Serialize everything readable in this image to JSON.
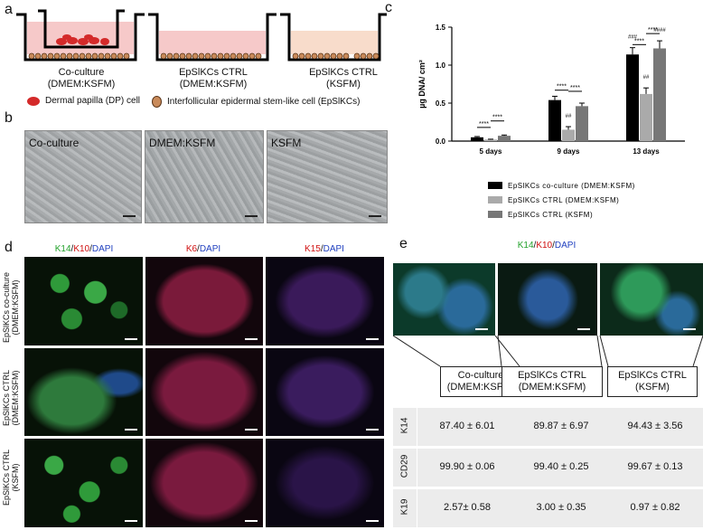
{
  "panels": {
    "a": "a",
    "b": "b",
    "c": "c",
    "d": "d",
    "e": "e"
  },
  "panel_a": {
    "wells": [
      {
        "caption_line1": "Co-culture",
        "caption_line2": "(DMEM:KSFM)"
      },
      {
        "caption_line1": "EpSlKCs CTRL",
        "caption_line2": "(DMEM:KSFM)"
      },
      {
        "caption_line1": "EpSlKCs CTRL",
        "caption_line2": "(KSFM)"
      }
    ],
    "legend_dp": "Dermal papilla (DP) cell",
    "legend_ep": "Interfollicular epidermal stem-like cell (EpSlKCs)",
    "colors": {
      "medium_dmem": "#f6c9c9",
      "medium_ksfm": "#f8dccb",
      "dp_cell": "#d42a2a",
      "ep_cell": "#7a4a2a"
    }
  },
  "panel_b": {
    "images": [
      "Co-culture",
      "DMEM:KSFM",
      "KSFM"
    ]
  },
  "chart_data": {
    "type": "bar",
    "categories": [
      "5 days",
      "9 days",
      "13 days"
    ],
    "series": [
      {
        "name": "EpSlKCs co-culture (DMEM:KSFM)",
        "color": "#000000",
        "values": [
          0.05,
          0.54,
          1.14
        ],
        "errors": [
          0.01,
          0.05,
          0.09
        ]
      },
      {
        "name": "EpSlKCs CTRL (DMEM:KSFM)",
        "color": "#aaaaaa",
        "values": [
          0.02,
          0.15,
          0.62
        ],
        "errors": [
          0.005,
          0.04,
          0.08
        ]
      },
      {
        "name": "EpSlKCs CTRL (KSFM)",
        "color": "#777777",
        "values": [
          0.07,
          0.46,
          1.22
        ],
        "errors": [
          0.01,
          0.04,
          0.1
        ]
      }
    ],
    "ylabel": "µg DNA/ cm²",
    "ylim": [
      0,
      1.5
    ],
    "yticks": [
      "0.0",
      "0.5",
      "1.0",
      "1.5"
    ],
    "sig": "****",
    "marks": {
      "day9_ctrl": "##",
      "day13_coculture": "###",
      "day13_ctrl": "##",
      "day13_ksfm": "####"
    },
    "legend_position": "bottom"
  },
  "panel_d": {
    "headers": [
      {
        "parts": [
          {
            "t": "K14",
            "c": "g"
          },
          {
            "t": "/",
            "c": ""
          },
          {
            "t": "K10",
            "c": "r"
          },
          {
            "t": "/",
            "c": ""
          },
          {
            "t": "DAPI",
            "c": "b"
          }
        ]
      },
      {
        "parts": [
          {
            "t": "K6",
            "c": "r"
          },
          {
            "t": "/",
            "c": ""
          },
          {
            "t": "DAPI",
            "c": "b"
          }
        ]
      },
      {
        "parts": [
          {
            "t": "K15",
            "c": "r"
          },
          {
            "t": "/",
            "c": ""
          },
          {
            "t": "DAPI",
            "c": "b"
          }
        ]
      }
    ],
    "rows": [
      {
        "line1": "EpSlKCs co-culture",
        "line2": "(DMEM:KSFM)"
      },
      {
        "line1": "EpSlKCs CTRL",
        "line2": "(DMEM:KSFM)"
      },
      {
        "line1": "EpSlKCs CTRL",
        "line2": "(KSFM)"
      }
    ]
  },
  "panel_e": {
    "header_parts": [
      {
        "t": "K14",
        "c": "g"
      },
      {
        "t": "/",
        "c": ""
      },
      {
        "t": "K10",
        "c": "r"
      },
      {
        "t": "/",
        "c": ""
      },
      {
        "t": "DAPI",
        "c": "b"
      }
    ],
    "boxes": [
      {
        "line1": "Co-culture",
        "line2": "(DMEM:KSFM)"
      },
      {
        "line1": "EpSlKCs CTRL",
        "line2": "(DMEM:KSFM)"
      },
      {
        "line1": "EpSlKCs CTRL",
        "line2": "(KSFM)"
      }
    ],
    "table": [
      {
        "marker": "K14",
        "values": [
          "87.40 ± 6.01",
          "89.87 ± 6.97",
          "94.43 ± 3.56"
        ]
      },
      {
        "marker": "CD29",
        "values": [
          "99.90 ± 0.06",
          "99.40 ± 0.25",
          "99.67 ± 0.13"
        ]
      },
      {
        "marker": "K19",
        "values": [
          "2.57± 0.58",
          "3.00 ± 0.35",
          "0.97 ± 0.82"
        ]
      }
    ]
  }
}
